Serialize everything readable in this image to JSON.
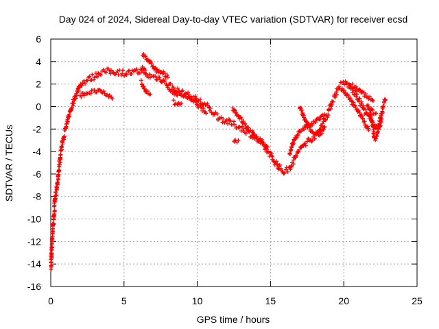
{
  "chart_data": {
    "type": "scatter",
    "title": "Day 024 of 2024, Sidereal Day-to-day VTEC variation (SDTVAR) for receiver ecsd",
    "xlabel": "GPS time / hours",
    "ylabel": "SDTVAR / TECUs",
    "xlim": [
      0,
      25
    ],
    "ylim": [
      -16,
      6
    ],
    "x_ticks": [
      0,
      5,
      10,
      15,
      20,
      25
    ],
    "y_ticks": [
      -16,
      -14,
      -12,
      -10,
      -8,
      -6,
      -4,
      -2,
      0,
      2,
      4,
      6
    ],
    "grid": true,
    "legend": "none",
    "marker": "+",
    "colors": {
      "series": "#ff0000",
      "axes": "#000000",
      "grid": "#a0a0a0"
    },
    "series": [
      {
        "name": "ecsd",
        "track": [
          [
            0.0,
            -14.7
          ],
          [
            0.05,
            -13.0
          ],
          [
            0.1,
            -11.5
          ],
          [
            0.2,
            -10.0
          ],
          [
            0.3,
            -8.3
          ],
          [
            0.45,
            -6.8
          ],
          [
            0.6,
            -5.0
          ],
          [
            0.75,
            -3.5
          ],
          [
            0.9,
            -2.6
          ],
          [
            1.1,
            -1.5
          ],
          [
            1.3,
            -0.5
          ],
          [
            1.5,
            0.3
          ],
          [
            1.7,
            1.0
          ],
          [
            1.9,
            1.6
          ],
          [
            2.1,
            2.1
          ],
          [
            2.4,
            2.3
          ],
          [
            2.7,
            2.5
          ],
          [
            3.0,
            2.7
          ],
          [
            3.3,
            3.0
          ],
          [
            3.6,
            3.1
          ],
          [
            4.0,
            3.1
          ],
          [
            4.5,
            3.1
          ],
          [
            5.0,
            3.0
          ],
          [
            5.5,
            3.0
          ],
          [
            6.0,
            3.1
          ],
          [
            6.3,
            3.4
          ],
          [
            6.5,
            2.8
          ],
          [
            6.8,
            2.7
          ],
          [
            7.2,
            2.6
          ],
          [
            7.6,
            2.4
          ],
          [
            8.0,
            2.0
          ],
          [
            8.5,
            1.5
          ],
          [
            9.0,
            1.2
          ],
          [
            9.5,
            0.9
          ],
          [
            10.0,
            0.6
          ],
          [
            10.5,
            0.2
          ],
          [
            11.0,
            -0.4
          ],
          [
            11.5,
            -1.0
          ],
          [
            12.0,
            -1.3
          ],
          [
            12.5,
            -1.6
          ],
          [
            13.0,
            -1.9
          ],
          [
            13.5,
            -2.3
          ],
          [
            14.0,
            -2.8
          ],
          [
            14.5,
            -3.5
          ],
          [
            15.0,
            -4.3
          ],
          [
            15.3,
            -4.9
          ],
          [
            15.6,
            -5.4
          ],
          [
            15.9,
            -5.8
          ],
          [
            16.2,
            -5.6
          ],
          [
            16.5,
            -5.0
          ],
          [
            16.8,
            -4.2
          ],
          [
            17.2,
            -3.5
          ],
          [
            17.6,
            -3.0
          ],
          [
            18.0,
            -2.7
          ],
          [
            18.3,
            -2.2
          ],
          [
            18.6,
            -1.4
          ],
          [
            18.9,
            -0.6
          ],
          [
            19.2,
            0.4
          ],
          [
            19.5,
            1.3
          ],
          [
            19.8,
            1.9
          ],
          [
            20.1,
            2.1
          ],
          [
            20.4,
            1.8
          ],
          [
            20.8,
            1.1
          ],
          [
            21.2,
            0.2
          ],
          [
            21.6,
            -0.8
          ],
          [
            22.0,
            -1.5
          ],
          [
            22.3,
            -2.0
          ],
          [
            22.5,
            -1.0
          ],
          [
            22.7,
            0.0
          ],
          [
            22.85,
            0.6
          ]
        ],
        "branches": [
          [
            [
              2.0,
              1.0
            ],
            [
              2.4,
              1.2
            ],
            [
              2.8,
              1.3
            ],
            [
              3.2,
              1.4
            ],
            [
              3.6,
              1.2
            ],
            [
              4.0,
              0.9
            ],
            [
              4.2,
              0.7
            ]
          ],
          [
            [
              6.3,
              4.7
            ],
            [
              6.6,
              4.2
            ],
            [
              6.9,
              3.7
            ],
            [
              7.2,
              3.2
            ],
            [
              7.6,
              3.0
            ],
            [
              8.0,
              2.6
            ]
          ],
          [
            [
              6.2,
              2.2
            ],
            [
              6.4,
              1.5
            ],
            [
              6.6,
              1.2
            ],
            [
              6.8,
              1.1
            ]
          ],
          [
            [
              8.0,
              1.6
            ],
            [
              8.6,
              1.1
            ],
            [
              9.2,
              1.0
            ],
            [
              9.6,
              0.6
            ],
            [
              10.1,
              0.1
            ],
            [
              10.6,
              -0.6
            ]
          ],
          [
            [
              8.4,
              0.4
            ],
            [
              8.7,
              0.2
            ],
            [
              8.9,
              0.3
            ]
          ],
          [
            [
              12.4,
              -0.1
            ],
            [
              12.8,
              -0.8
            ],
            [
              13.2,
              -1.5
            ],
            [
              13.6,
              -2.2
            ],
            [
              14.0,
              -2.6
            ],
            [
              14.4,
              -3.1
            ],
            [
              14.8,
              -3.6
            ]
          ],
          [
            [
              12.5,
              -3.1
            ],
            [
              12.8,
              -3.0
            ]
          ],
          [
            [
              16.3,
              -4.3
            ],
            [
              16.6,
              -3.0
            ],
            [
              17.0,
              -2.2
            ],
            [
              17.4,
              -1.8
            ],
            [
              17.8,
              -1.6
            ],
            [
              18.2,
              -1.2
            ],
            [
              18.5,
              -0.9
            ],
            [
              18.7,
              -0.7
            ]
          ],
          [
            [
              17.0,
              -0.1
            ],
            [
              17.3,
              -1.0
            ],
            [
              17.6,
              -1.9
            ],
            [
              18.0,
              -2.5
            ],
            [
              18.4,
              -2.4
            ],
            [
              18.7,
              -1.8
            ]
          ],
          [
            [
              19.8,
              1.6
            ],
            [
              20.2,
              1.0
            ],
            [
              20.6,
              0.3
            ],
            [
              21.0,
              -0.4
            ],
            [
              21.4,
              -1.4
            ],
            [
              21.7,
              -2.1
            ]
          ],
          [
            [
              20.5,
              1.9
            ],
            [
              20.9,
              1.6
            ],
            [
              21.3,
              1.2
            ],
            [
              21.7,
              0.8
            ],
            [
              22.0,
              0.5
            ]
          ],
          [
            [
              21.8,
              -0.5
            ],
            [
              22.0,
              -1.8
            ],
            [
              22.1,
              -2.9
            ],
            [
              22.3,
              -2.4
            ],
            [
              22.6,
              -1.1
            ]
          ],
          [
            [
              21.6,
              0.1
            ],
            [
              21.9,
              -0.4
            ],
            [
              22.2,
              -0.6
            ]
          ]
        ]
      }
    ]
  }
}
